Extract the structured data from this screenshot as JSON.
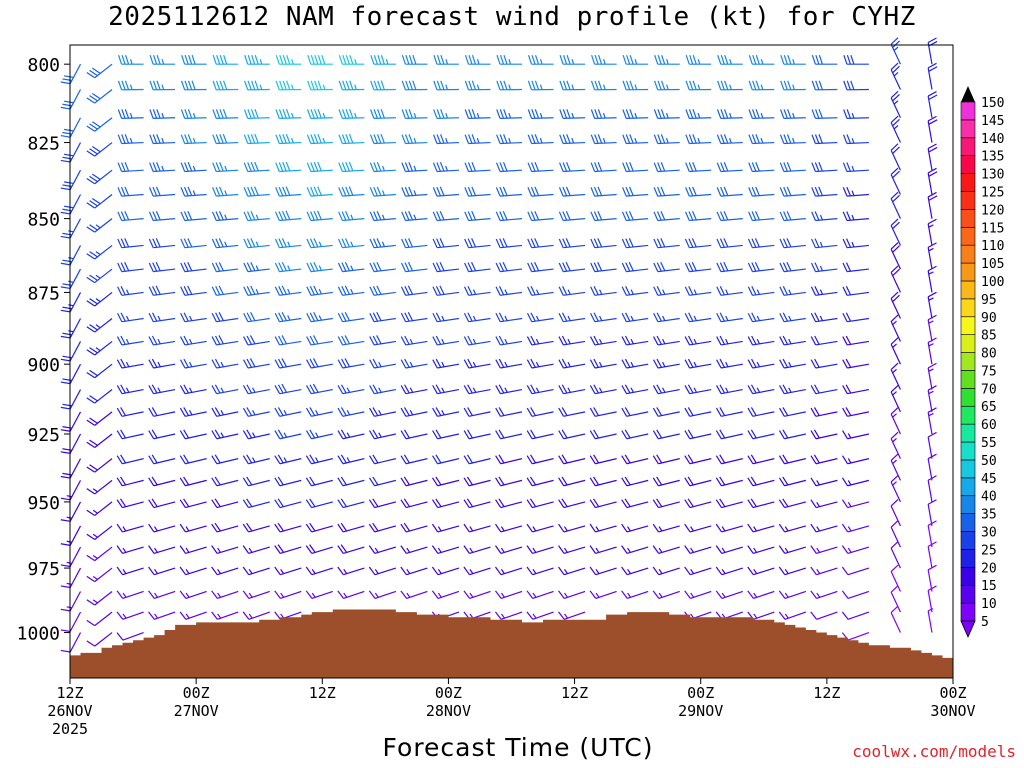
{
  "title": "2025112612 NAM forecast wind profile (kt) for CYHZ",
  "credit": "coolwx.com/models",
  "chart_data": {
    "type": "wind-barb-time-height",
    "title": "2025112612 NAM forecast wind profile (kt) for CYHZ",
    "xlabel": "Forecast Time (UTC)",
    "ylabel": "",
    "x_range_hours": [
      0,
      84
    ],
    "y_range_hpa": [
      1018,
      794
    ],
    "y_ticks": [
      800,
      825,
      850,
      875,
      900,
      925,
      950,
      975,
      1000
    ],
    "x_ticks": [
      {
        "hour": 0,
        "line1": "12Z",
        "line2": "26NOV",
        "line3": "2025"
      },
      {
        "hour": 12,
        "line1": "00Z",
        "line2": "27NOV",
        "line3": ""
      },
      {
        "hour": 24,
        "line1": "12Z",
        "line2": "",
        "line3": ""
      },
      {
        "hour": 36,
        "line1": "00Z",
        "line2": "28NOV",
        "line3": ""
      },
      {
        "hour": 48,
        "line1": "12Z",
        "line2": "",
        "line3": ""
      },
      {
        "hour": 60,
        "line1": "00Z",
        "line2": "29NOV",
        "line3": ""
      },
      {
        "hour": 72,
        "line1": "12Z",
        "line2": "",
        "line3": ""
      },
      {
        "hour": 84,
        "line1": "00Z",
        "line2": "30NOV",
        "line3": ""
      }
    ],
    "colorbar": {
      "levels": [
        5,
        10,
        15,
        20,
        25,
        30,
        35,
        40,
        45,
        50,
        55,
        60,
        65,
        70,
        75,
        80,
        85,
        90,
        95,
        100,
        105,
        110,
        115,
        120,
        125,
        130,
        135,
        140,
        145,
        150
      ],
      "colors": [
        "#7e00ff",
        "#5a00f0",
        "#3a00e8",
        "#1f20e8",
        "#1a40e8",
        "#1862e8",
        "#1786e8",
        "#16a8e8",
        "#16c8e0",
        "#18e0c8",
        "#18e8a0",
        "#20e860",
        "#30e030",
        "#60e020",
        "#a0e820",
        "#d8f018",
        "#f8f818",
        "#f8d818",
        "#f8b818",
        "#f89818",
        "#f88018",
        "#f86818",
        "#f85018",
        "#f83018",
        "#f81818",
        "#f80848",
        "#f81878",
        "#f830a8",
        "#f030d8",
        "#e820f0"
      ]
    },
    "terrain_pressure_hpa": [
      [
        0,
        1009
      ],
      [
        1,
        1008
      ],
      [
        3,
        1006
      ],
      [
        4,
        1005
      ],
      [
        5,
        1004
      ],
      [
        6,
        1003
      ],
      [
        7,
        1002
      ],
      [
        8,
        1001
      ],
      [
        9,
        999
      ],
      [
        10,
        997
      ],
      [
        12,
        996
      ],
      [
        14,
        996
      ],
      [
        18,
        995
      ],
      [
        20,
        994
      ],
      [
        22,
        993
      ],
      [
        23,
        992
      ],
      [
        25,
        991
      ],
      [
        28,
        991
      ],
      [
        30,
        991
      ],
      [
        31,
        992
      ],
      [
        32,
        992
      ],
      [
        33,
        993
      ],
      [
        36,
        994
      ],
      [
        40,
        995
      ],
      [
        43,
        996
      ],
      [
        45,
        995
      ],
      [
        49,
        995
      ],
      [
        51,
        993
      ],
      [
        53,
        992
      ],
      [
        56,
        992
      ],
      [
        57,
        993
      ],
      [
        59,
        994
      ],
      [
        63,
        994
      ],
      [
        65,
        995
      ],
      [
        67,
        996
      ],
      [
        68,
        997
      ],
      [
        69,
        998
      ],
      [
        70,
        999
      ],
      [
        71,
        1000
      ],
      [
        72,
        1001
      ],
      [
        73,
        1002
      ],
      [
        74,
        1003
      ],
      [
        75,
        1004
      ],
      [
        76,
        1005
      ],
      [
        77,
        1005
      ],
      [
        78,
        1006
      ],
      [
        80,
        1007
      ],
      [
        81,
        1008
      ],
      [
        82,
        1009
      ],
      [
        83,
        1010
      ],
      [
        84,
        1011
      ]
    ],
    "levels_hpa": [
      800,
      808,
      817,
      825,
      834,
      842,
      850,
      859,
      867,
      875,
      884,
      892,
      900,
      909,
      917,
      925,
      934,
      942,
      950,
      959,
      967,
      975,
      984,
      992,
      1000
    ],
    "wind_field": "Winds mostly west to west-southwest 20-40 kt aloft, strongest near 45-50 kt around hour 24 at 800-850 hPa; lighter 5-15 kt near the surface; speeds decrease after hour 72 with northerly shift at the end."
  }
}
